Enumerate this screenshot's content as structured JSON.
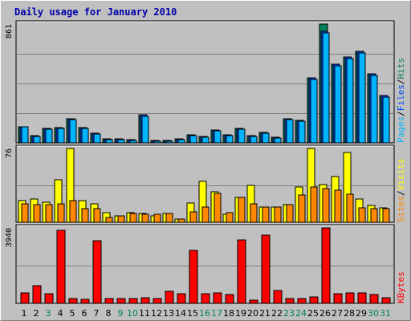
{
  "title": "Daily usage for January 2010",
  "colors": {
    "background": "#c0c0c0",
    "title": "#0000aa",
    "grid": "#808080",
    "hits": "#00805c",
    "files": "#0044ff",
    "pages": "#00b4ff",
    "visits": "#ffff00",
    "sites": "#ff8800",
    "kbytes": "#ff0000",
    "weekend": "#00805c",
    "weekday": "#000000"
  },
  "chart_data": [
    {
      "type": "bar",
      "ylabel_parts": [
        "Pages",
        "Files",
        "Hits"
      ],
      "ymax_label": "861",
      "ylim": [
        0,
        861
      ],
      "categories": [
        "1",
        "2",
        "3",
        "4",
        "5",
        "6",
        "7",
        "8",
        "9",
        "10",
        "11",
        "12",
        "13",
        "14",
        "15",
        "16",
        "17",
        "18",
        "19",
        "20",
        "21",
        "22",
        "23",
        "24",
        "25",
        "26",
        "27",
        "28",
        "29",
        "30",
        "31"
      ],
      "series": [
        {
          "name": "Hits",
          "values": [
            119,
            50,
            102,
            110,
            174,
            113,
            70,
            30,
            28,
            23,
            202,
            18,
            15,
            27,
            58,
            48,
            92,
            58,
            105,
            53,
            76,
            42,
            177,
            164,
            472,
            861,
            572,
            625,
            664,
            500,
            343
          ]
        },
        {
          "name": "Files",
          "values": [
            119,
            50,
            102,
            110,
            174,
            113,
            70,
            30,
            28,
            23,
            202,
            18,
            15,
            27,
            58,
            48,
            92,
            58,
            105,
            53,
            76,
            42,
            177,
            164,
            472,
            810,
            572,
            625,
            664,
            500,
            343
          ]
        },
        {
          "name": "Pages",
          "values": [
            114,
            44,
            97,
            105,
            166,
            106,
            64,
            26,
            24,
            20,
            194,
            14,
            12,
            22,
            52,
            43,
            86,
            51,
            100,
            48,
            70,
            36,
            170,
            158,
            462,
            796,
            561,
            613,
            651,
            490,
            334
          ]
        }
      ]
    },
    {
      "type": "bar",
      "ylabel_parts": [
        "Sites",
        "Visits"
      ],
      "ymax_label": "76",
      "ylim": [
        0,
        76
      ],
      "categories": [
        "1",
        "2",
        "3",
        "4",
        "5",
        "6",
        "7",
        "8",
        "9",
        "10",
        "11",
        "12",
        "13",
        "14",
        "15",
        "16",
        "17",
        "18",
        "19",
        "20",
        "21",
        "22",
        "23",
        "24",
        "25",
        "26",
        "27",
        "28",
        "29",
        "30",
        "31"
      ],
      "series": [
        {
          "name": "Visits",
          "values": [
            22,
            24,
            21,
            44,
            76,
            22,
            19,
            10,
            7,
            10,
            9,
            7,
            9,
            3,
            20,
            42,
            31,
            8,
            26,
            38,
            16,
            16,
            18,
            36,
            76,
            39,
            47,
            72,
            24,
            17,
            15
          ]
        },
        {
          "name": "Sites",
          "values": [
            19,
            18,
            18,
            19,
            22,
            14,
            14,
            5,
            7,
            9,
            8,
            8,
            9,
            3,
            11,
            16,
            30,
            10,
            26,
            19,
            16,
            16,
            18,
            28,
            36,
            35,
            33,
            29,
            15,
            14,
            14
          ]
        }
      ]
    },
    {
      "type": "bar",
      "ylabel_parts": [
        "KBytes"
      ],
      "ymax_label": "3940",
      "ylim": [
        0,
        3940
      ],
      "categories": [
        "1",
        "2",
        "3",
        "4",
        "5",
        "6",
        "7",
        "8",
        "9",
        "10",
        "11",
        "12",
        "13",
        "14",
        "15",
        "16",
        "17",
        "18",
        "19",
        "20",
        "21",
        "22",
        "23",
        "24",
        "25",
        "26",
        "27",
        "28",
        "29",
        "30",
        "31"
      ],
      "series": [
        {
          "name": "KBytes",
          "values": [
            550,
            920,
            490,
            3810,
            270,
            220,
            3280,
            250,
            240,
            260,
            280,
            240,
            640,
            520,
            2760,
            490,
            540,
            460,
            3300,
            160,
            3580,
            650,
            250,
            260,
            340,
            3940,
            490,
            540,
            560,
            470,
            310
          ]
        }
      ]
    }
  ],
  "weekend_days": [
    3,
    9,
    10,
    16,
    17,
    23,
    24,
    30,
    31
  ]
}
